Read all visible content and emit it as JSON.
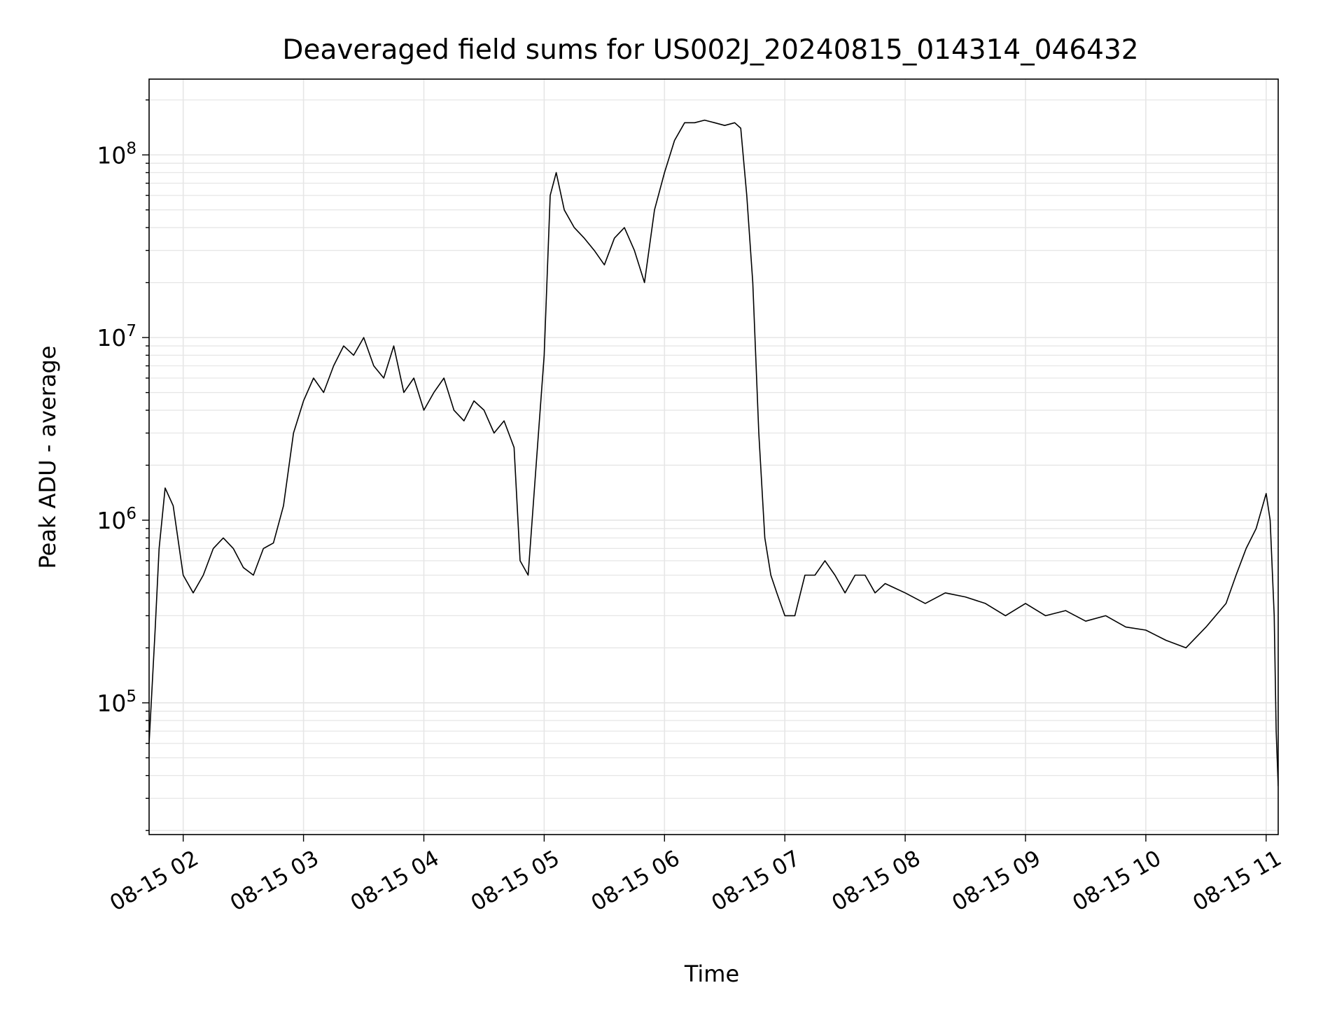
{
  "chart_data": {
    "type": "line",
    "title": "Deaveraged field sums for US002J_20240815_014314_046432",
    "xlabel": "Time",
    "ylabel": "Peak ADU - average",
    "x_range": [
      "2024-08-15T01:43",
      "2024-08-15T11:06"
    ],
    "y_scale": "log",
    "ylim": [
      19000,
      260000000
    ],
    "grid": true,
    "x_ticks": [
      "08-15 02",
      "08-15 03",
      "08-15 04",
      "08-15 05",
      "08-15 06",
      "08-15 07",
      "08-15 08",
      "08-15 09",
      "08-15 10",
      "08-15 11"
    ],
    "y_ticks": [
      {
        "base": "10",
        "exp": "5",
        "value": 100000
      },
      {
        "base": "10",
        "exp": "6",
        "value": 1000000
      },
      {
        "base": "10",
        "exp": "7",
        "value": 10000000
      },
      {
        "base": "10",
        "exp": "8",
        "value": 100000000
      }
    ],
    "line_color": "#000000",
    "grid_color": "#e6e6e6",
    "series": [
      {
        "x": [
          "01:43",
          "01:46",
          "01:48",
          "01:51",
          "01:55",
          "02:00",
          "02:05",
          "02:10",
          "02:15",
          "02:20",
          "02:25",
          "02:30",
          "02:35",
          "02:40",
          "02:45",
          "02:50",
          "02:55",
          "03:00",
          "03:05",
          "03:10",
          "03:15",
          "03:20",
          "03:25",
          "03:30",
          "03:35",
          "03:40",
          "03:45",
          "03:50",
          "03:55",
          "04:00",
          "04:05",
          "04:10",
          "04:15",
          "04:20",
          "04:25",
          "04:30",
          "04:35",
          "04:40",
          "04:45",
          "04:48",
          "04:52",
          "04:56",
          "05:00",
          "05:03",
          "05:06",
          "05:10",
          "05:15",
          "05:20",
          "05:25",
          "05:30",
          "05:35",
          "05:40",
          "05:45",
          "05:50",
          "05:55",
          "06:00",
          "06:05",
          "06:10",
          "06:15",
          "06:20",
          "06:25",
          "06:30",
          "06:35",
          "06:38",
          "06:41",
          "06:44",
          "06:47",
          "06:50",
          "06:53",
          "06:56",
          "07:00",
          "07:05",
          "07:10",
          "07:15",
          "07:20",
          "07:25",
          "07:30",
          "07:35",
          "07:40",
          "07:45",
          "07:50",
          "08:00",
          "08:10",
          "08:20",
          "08:30",
          "08:40",
          "08:50",
          "09:00",
          "09:10",
          "09:20",
          "09:30",
          "09:40",
          "09:50",
          "10:00",
          "10:10",
          "10:20",
          "10:30",
          "10:40",
          "10:45",
          "10:50",
          "10:55",
          "11:00",
          "11:02",
          "11:04",
          "11:05",
          "11:06"
        ],
        "y": [
          60000,
          250000,
          700000,
          1500000,
          1200000,
          500000,
          400000,
          500000,
          700000,
          800000,
          700000,
          550000,
          500000,
          700000,
          750000,
          1200000,
          3000000,
          4500000,
          6000000,
          5000000,
          7000000,
          9000000,
          8000000,
          10000000,
          7000000,
          6000000,
          9000000,
          5000000,
          6000000,
          4000000,
          5000000,
          6000000,
          4000000,
          3500000,
          4500000,
          4000000,
          3000000,
          3500000,
          2500000,
          600000,
          500000,
          2000000,
          8000000,
          60000000,
          80000000,
          50000000,
          40000000,
          35000000,
          30000000,
          25000000,
          35000000,
          40000000,
          30000000,
          20000000,
          50000000,
          80000000,
          120000000,
          150000000,
          150000000,
          155000000,
          150000000,
          145000000,
          150000000,
          140000000,
          60000000,
          20000000,
          3000000,
          800000,
          500000,
          400000,
          300000,
          300000,
          500000,
          500000,
          600000,
          500000,
          400000,
          500000,
          500000,
          400000,
          450000,
          400000,
          350000,
          400000,
          380000,
          350000,
          300000,
          350000,
          300000,
          320000,
          280000,
          300000,
          260000,
          250000,
          220000,
          200000,
          260000,
          350000,
          500000,
          700000,
          900000,
          1400000,
          1000000,
          300000,
          70000,
          35000
        ]
      }
    ]
  }
}
